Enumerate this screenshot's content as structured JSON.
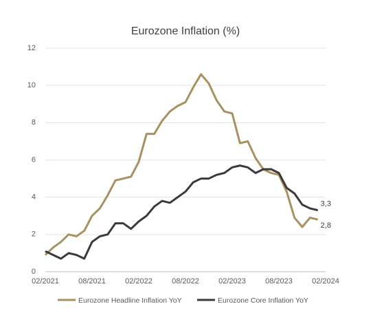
{
  "chart_data": {
    "type": "line",
    "title": "Eurozone Inflation (%)",
    "categories": [
      "02/2021",
      null,
      null,
      null,
      null,
      null,
      "08/2021",
      null,
      null,
      null,
      null,
      null,
      "02/2022",
      null,
      null,
      null,
      null,
      null,
      "08/2022",
      null,
      null,
      null,
      null,
      null,
      "02/2023",
      null,
      null,
      null,
      null,
      null,
      "08/2023",
      null,
      null,
      null,
      null,
      null,
      "02/2024"
    ],
    "series": [
      {
        "name": "Eurozone Headline Inflation YoY",
        "color": "#a89060",
        "values": [
          0.9,
          1.3,
          1.6,
          2.0,
          1.9,
          2.2,
          3.0,
          3.4,
          4.1,
          4.9,
          5.0,
          5.1,
          5.9,
          7.4,
          7.4,
          8.1,
          8.6,
          8.9,
          9.1,
          9.9,
          10.6,
          10.1,
          9.2,
          8.6,
          8.5,
          6.9,
          7.0,
          6.1,
          5.5,
          5.3,
          5.2,
          4.3,
          2.9,
          2.4,
          2.9,
          2.8,
          null
        ],
        "value_labels": [
          null,
          null,
          null,
          null,
          null,
          null,
          null,
          null,
          null,
          null,
          null,
          null,
          null,
          null,
          null,
          null,
          null,
          null,
          null,
          null,
          null,
          null,
          null,
          null,
          null,
          null,
          null,
          null,
          null,
          null,
          null,
          null,
          null,
          null,
          null,
          "2,8",
          null
        ]
      },
      {
        "name": "Eurozone Core Inflation YoY",
        "color": "#3a3a3a",
        "values": [
          1.1,
          0.9,
          0.7,
          1.0,
          0.9,
          0.7,
          1.6,
          1.9,
          2.0,
          2.6,
          2.6,
          2.3,
          2.7,
          3.0,
          3.5,
          3.8,
          3.7,
          4.0,
          4.3,
          4.8,
          5.0,
          5.0,
          5.2,
          5.3,
          5.6,
          5.7,
          5.6,
          5.3,
          5.5,
          5.5,
          5.3,
          4.5,
          4.2,
          3.6,
          3.4,
          3.3,
          null
        ],
        "value_labels": [
          null,
          null,
          null,
          null,
          null,
          null,
          null,
          null,
          null,
          null,
          null,
          null,
          null,
          null,
          null,
          null,
          null,
          null,
          null,
          null,
          null,
          null,
          null,
          null,
          null,
          null,
          null,
          null,
          null,
          null,
          null,
          null,
          null,
          null,
          null,
          "3,3",
          null
        ]
      }
    ],
    "ylim": [
      0,
      12
    ],
    "yticks": [
      0,
      2,
      4,
      6,
      8,
      10,
      12
    ],
    "grid": true,
    "legend": "bottom"
  }
}
